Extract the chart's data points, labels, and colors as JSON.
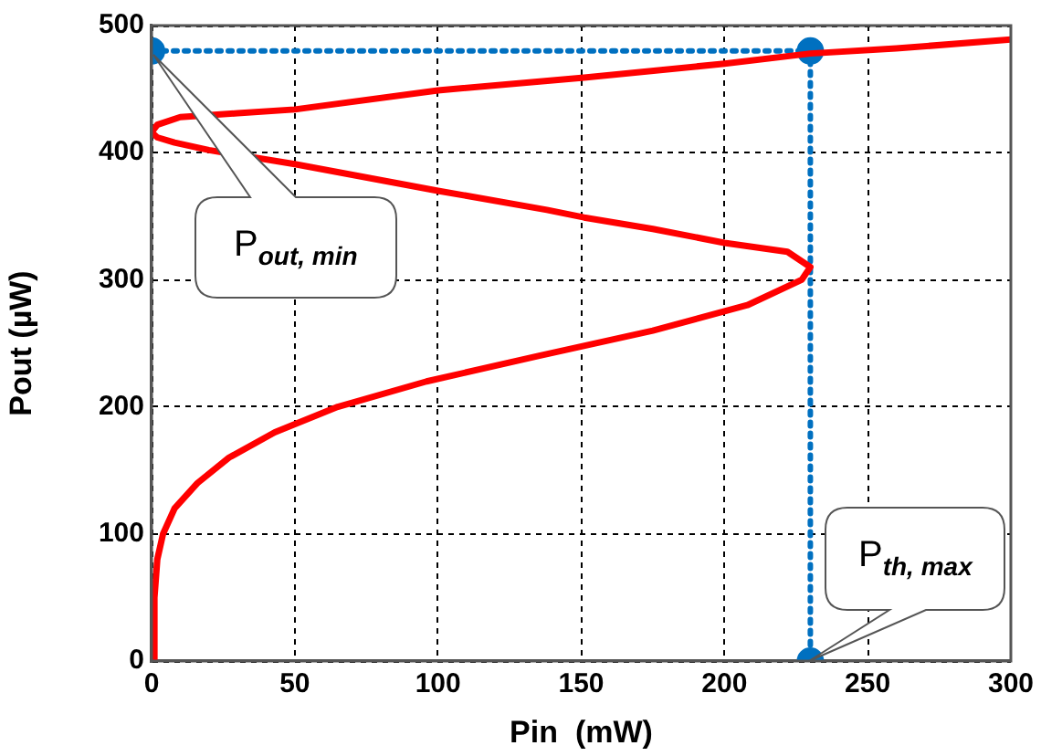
{
  "chart_data": {
    "type": "line",
    "xlabel": "Pin  (mW)",
    "ylabel": "Pout (µW)",
    "xlim": [
      0,
      300
    ],
    "xticks": [
      0,
      50,
      100,
      150,
      200,
      250,
      300
    ],
    "ylim": [
      0,
      500
    ],
    "yticks": [
      0,
      100,
      200,
      300,
      400,
      500
    ],
    "grid": true,
    "legend": false,
    "series": [
      {
        "color": "#ff0000",
        "marker": "none",
        "line_style": "solid",
        "x": [
          1,
          1,
          2,
          4,
          8,
          16,
          27,
          43,
          65,
          96,
          135,
          175,
          208,
          227,
          230,
          222,
          200,
          175,
          151,
          138,
          100,
          50,
          20,
          8,
          2,
          0,
          2,
          10,
          30,
          50,
          100,
          151,
          200,
          230,
          260,
          300
        ],
        "values": [
          0,
          50,
          80,
          100,
          120,
          140,
          160,
          180,
          200,
          220,
          240,
          260,
          280,
          300,
          310,
          322,
          329,
          340,
          349,
          355,
          370,
          391,
          402,
          408,
          412,
          416,
          422,
          428,
          431,
          434,
          449,
          459,
          470,
          478,
          482,
          489
        ]
      },
      {
        "color": "#0070c0",
        "marker": "circle",
        "line_style": "dotted",
        "x": [
          0,
          230,
          230
        ],
        "values": [
          480,
          480,
          0
        ]
      }
    ],
    "annotations": [
      "P$_{out, min}$",
      "P$_{th, max}$"
    ]
  }
}
